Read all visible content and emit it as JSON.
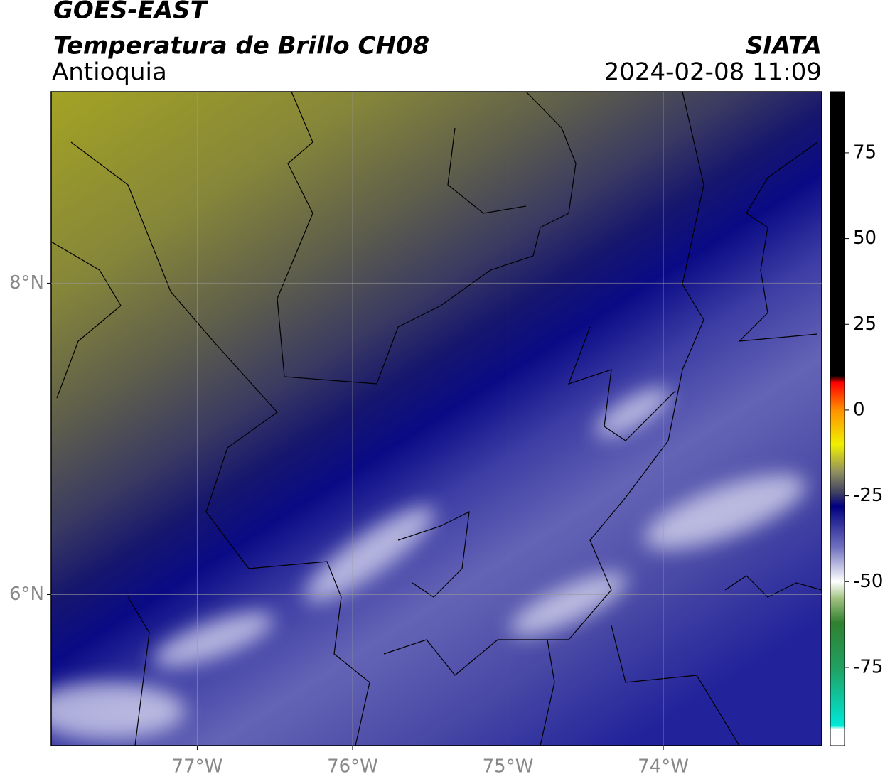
{
  "chart_data": {
    "type": "map",
    "title": "GOES-EAST",
    "subtitle": "Temperatura de Brillo CH08",
    "region": "Antioquia",
    "source": "SIATA",
    "timestamp": "2024-02-08 11:09",
    "xlim": [
      -77.94,
      -72.98
    ],
    "ylim": [
      5.03,
      9.23
    ],
    "xticks": [
      {
        "value": -77,
        "label": "77°W"
      },
      {
        "value": -76,
        "label": "76°W"
      },
      {
        "value": -75,
        "label": "75°W"
      },
      {
        "value": -74,
        "label": "74°W"
      }
    ],
    "yticks": [
      {
        "value": 6,
        "label": "6°N"
      },
      {
        "value": 8,
        "label": "8°N"
      }
    ],
    "grid": true,
    "colorbar": {
      "lim": [
        -97.8,
        92.8
      ],
      "ticks": [
        75,
        50,
        25,
        0,
        -25,
        -50,
        -75
      ],
      "colormap": [
        {
          "value": -97.8,
          "color": "#ffffff"
        },
        {
          "value": -93,
          "color": "#ffffff"
        },
        {
          "value": -92,
          "color": "#00e8d8"
        },
        {
          "value": -75,
          "color": "#20a060"
        },
        {
          "value": -62,
          "color": "#308030"
        },
        {
          "value": -55,
          "color": "#a0c080"
        },
        {
          "value": -50,
          "color": "#ffffff"
        },
        {
          "value": -40,
          "color": "#7070c0"
        },
        {
          "value": -28,
          "color": "#000080"
        },
        {
          "value": -24,
          "color": "#404060"
        },
        {
          "value": -18,
          "color": "#909060"
        },
        {
          "value": -10,
          "color": "#f0f000"
        },
        {
          "value": 0,
          "color": "#ff9000"
        },
        {
          "value": 8,
          "color": "#ff0000"
        },
        {
          "value": 10,
          "color": "#000000"
        },
        {
          "value": 92.8,
          "color": "#000000"
        }
      ]
    }
  }
}
